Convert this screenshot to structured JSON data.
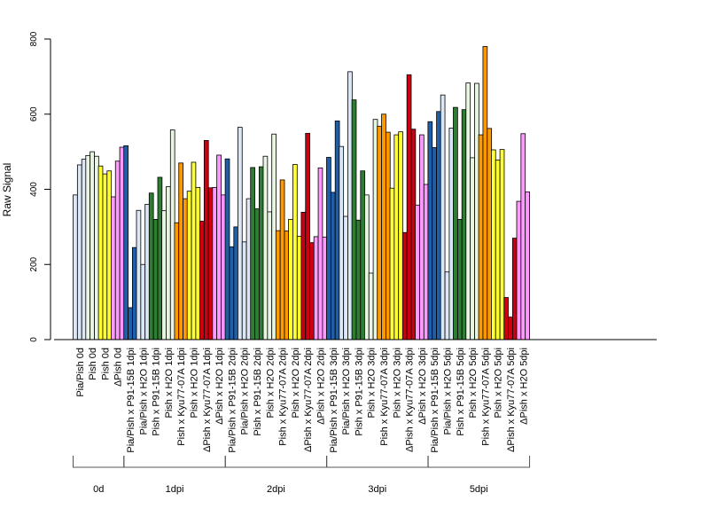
{
  "chart_data": {
    "type": "bar",
    "ylabel": "Raw Signal",
    "ylim": [
      0,
      800
    ],
    "yticks": [
      0,
      200,
      400,
      600,
      800
    ],
    "colors": {
      "Pia/Pish": "#dbe7f5",
      "Pia/Pish x P91-15B": "#1f5fa8",
      "Pia/Pish x H2O": "#dbe7f5",
      "Pish": "#e8f5e3",
      "Pish x P91-15B": "#2e7d32",
      "Pish x H2O": "#e8f5e3",
      "Pish0": "#ffff33",
      "ΔPish": "#ff99ff",
      "Pish x Kyu77-07A": "#ff9900",
      "Pish x H2O yellow": "#ffff33",
      "ΔPish x Kyu77-07A": "#cc0011",
      "ΔPish x H2O": "#ff99ff"
    },
    "groups": [
      {
        "label": "Pia/Pish 0d",
        "color": "#dbe7f5",
        "values": [
          385,
          465,
          480
        ]
      },
      {
        "label": "Pish 0d",
        "color": "#e8f5e3",
        "values": [
          490,
          500,
          488
        ]
      },
      {
        "label": "Pish 0d",
        "color": "#ffff33",
        "values": [
          462,
          441,
          449
        ]
      },
      {
        "label": "ΔPish 0d",
        "color": "#ff99ff",
        "values": [
          380,
          475,
          512
        ]
      },
      {
        "label": "Pia/Pish x P91-15B 1dpi",
        "color": "#1f5fa8",
        "values": [
          516,
          85,
          245
        ]
      },
      {
        "label": "Pia/Pish x H2O 1dpi",
        "color": "#dbe7f5",
        "values": [
          344,
          200,
          360
        ]
      },
      {
        "label": "Pish x P91-15B 1dpi",
        "color": "#2e7d32",
        "values": [
          390,
          320,
          432
        ]
      },
      {
        "label": "Pish x H2O 1dpi",
        "color": "#e8f5e3",
        "values": [
          343,
          407,
          558
        ]
      },
      {
        "label": "Pish x Kyu77-07A 1dpi",
        "color": "#ff9900",
        "values": [
          311,
          470,
          375
        ]
      },
      {
        "label": "Pish x H2O 1dpi",
        "color": "#ffff33",
        "values": [
          395,
          472,
          405
        ]
      },
      {
        "label": "ΔPish x Kyu77-07A 1dpi",
        "color": "#cc0011",
        "values": [
          315,
          530,
          404
        ]
      },
      {
        "label": "ΔPish x H2O 1dpi",
        "color": "#ff99ff",
        "values": [
          405,
          491,
          385
        ]
      },
      {
        "label": "Pia/Pish x P91-15B 2dpi",
        "color": "#1f5fa8",
        "values": [
          481,
          247,
          300
        ]
      },
      {
        "label": "Pia/Pish x H2O 2dpi",
        "color": "#dbe7f5",
        "values": [
          565,
          260,
          375
        ]
      },
      {
        "label": "Pish x P91-15B 2dpi",
        "color": "#2e7d32",
        "values": [
          458,
          348,
          460
        ]
      },
      {
        "label": "Pish x H2O 2dpi",
        "color": "#e8f5e3",
        "values": [
          488,
          340,
          547
        ]
      },
      {
        "label": "Pish x Kyu77-07A 2dpi",
        "color": "#ff9900",
        "values": [
          290,
          425,
          289
        ]
      },
      {
        "label": "Pish x H2O 2dpi",
        "color": "#ffff33",
        "values": [
          320,
          466,
          275
        ]
      },
      {
        "label": "ΔPish x Kyu77-07A 2dpi",
        "color": "#cc0011",
        "values": [
          339,
          549,
          258
        ]
      },
      {
        "label": "ΔPish x H2O 2dpi",
        "color": "#ff99ff",
        "values": [
          274,
          457,
          273
        ]
      },
      {
        "label": "Pia/Pish x P91-15B 3dpi",
        "color": "#1f5fa8",
        "values": [
          485,
          392,
          582
        ]
      },
      {
        "label": "Pia/Pish x H2O 3dpi",
        "color": "#dbe7f5",
        "values": [
          514,
          328,
          713
        ]
      },
      {
        "label": "Pish x P91-15B 3dpi",
        "color": "#2e7d32",
        "values": [
          638,
          318,
          449
        ]
      },
      {
        "label": "Pish x H2O 3dpi",
        "color": "#e8f5e3",
        "values": [
          385,
          177,
          586
        ]
      },
      {
        "label": "Pish x Kyu77-07A 3dpi",
        "color": "#ff9900",
        "values": [
          568,
          600,
          552
        ]
      },
      {
        "label": "Pish x H2O 3dpi",
        "color": "#ffff33",
        "values": [
          403,
          545,
          553
        ]
      },
      {
        "label": "ΔPish x Kyu77-07A 3dpi",
        "color": "#cc0011",
        "values": [
          285,
          705,
          560
        ]
      },
      {
        "label": "ΔPish x H2O 3dpi",
        "color": "#ff99ff",
        "values": [
          358,
          545,
          413
        ]
      },
      {
        "label": "Pia/Pish x P91-15B 5dpi",
        "color": "#1f5fa8",
        "values": [
          580,
          511,
          607
        ]
      },
      {
        "label": "Pia/Pish x H2O 5dpi",
        "color": "#dbe7f5",
        "values": [
          651,
          180,
          563
        ]
      },
      {
        "label": "Pish x P91-15B 5dpi",
        "color": "#2e7d32",
        "values": [
          618,
          320,
          612
        ]
      },
      {
        "label": "Pish x H2O 5dpi",
        "color": "#e8f5e3",
        "values": [
          683,
          484,
          682
        ]
      },
      {
        "label": "Pish x Kyu77-07A 5dpi",
        "color": "#ff9900",
        "values": [
          545,
          780,
          562
        ]
      },
      {
        "label": "Pish x H2O 5dpi",
        "color": "#ffff33",
        "values": [
          505,
          478,
          506
        ]
      },
      {
        "label": "ΔPish x Kyu77-07A 5dpi",
        "color": "#cc0011",
        "values": [
          112,
          60,
          270
        ]
      },
      {
        "label": "ΔPish x H2O 5dpi",
        "color": "#ff99ff",
        "values": [
          368,
          548,
          393
        ]
      }
    ],
    "time_brackets": [
      {
        "label": "0d",
        "first_group": 0,
        "last_group": 3
      },
      {
        "label": "1dpi",
        "first_group": 4,
        "last_group": 11
      },
      {
        "label": "2dpi",
        "first_group": 12,
        "last_group": 19
      },
      {
        "label": "3dpi",
        "first_group": 20,
        "last_group": 27
      },
      {
        "label": "5dpi",
        "first_group": 28,
        "last_group": 35
      }
    ]
  }
}
